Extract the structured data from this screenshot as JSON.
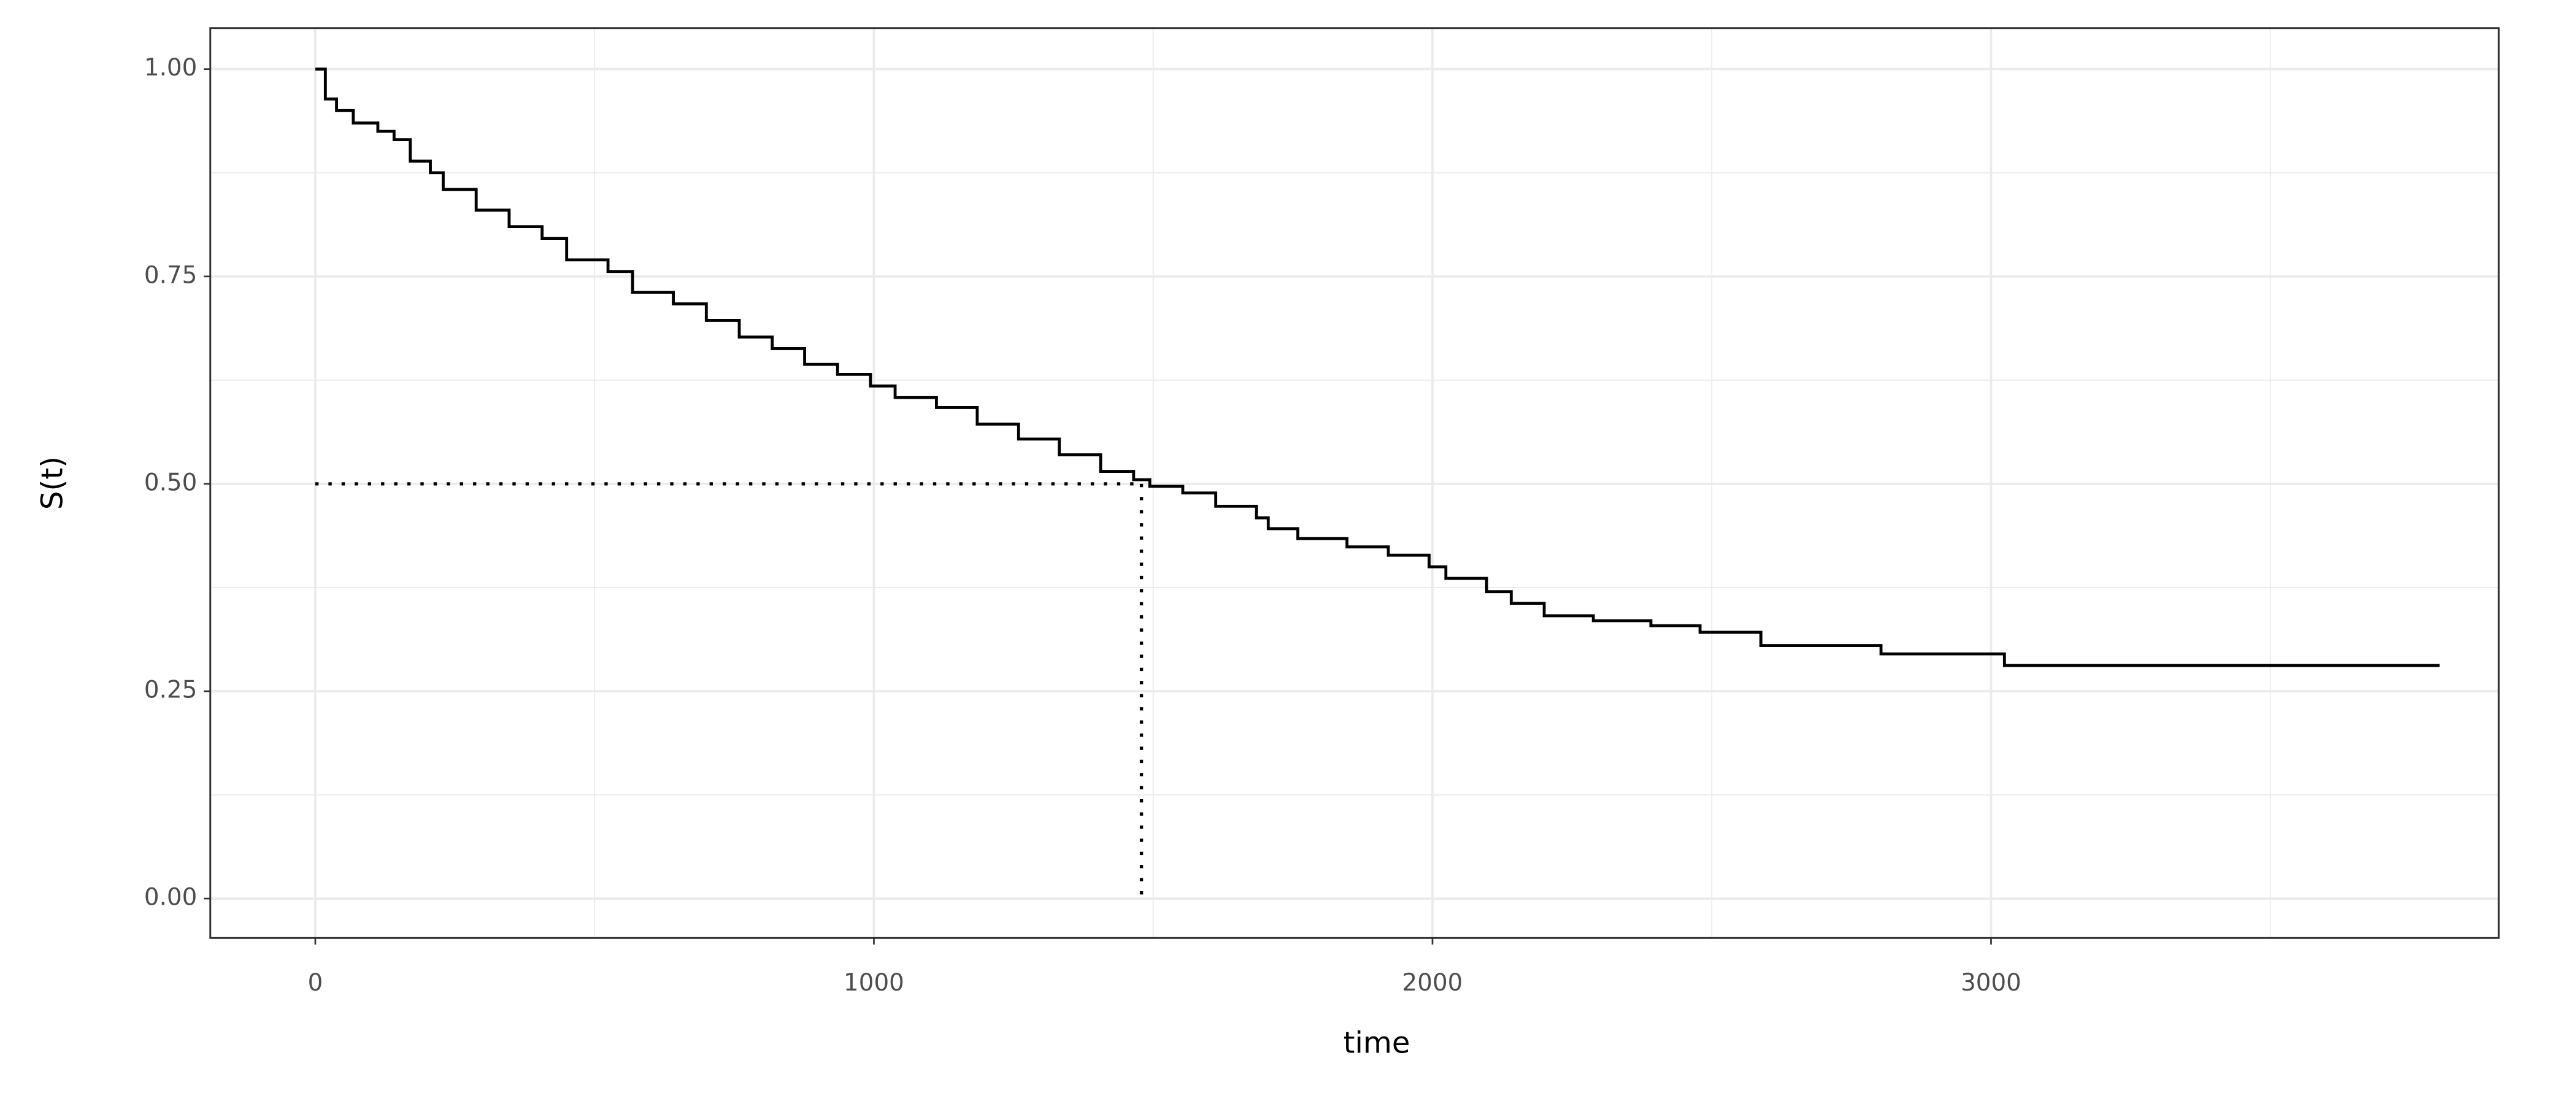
{
  "chart_data": {
    "type": "line",
    "step": "post",
    "color": "#000000",
    "x_label": "time",
    "y_label": "S(t)",
    "x": [
      0,
      18,
      38,
      68,
      112,
      141,
      170,
      206,
      229,
      288,
      347,
      406,
      450,
      524,
      568,
      641,
      700,
      759,
      818,
      876,
      935,
      994,
      1038,
      1112,
      1185,
      1259,
      1332,
      1406,
      1465,
      1494,
      1553,
      1612,
      1685,
      1706,
      1759,
      1847,
      1921,
      1994,
      2024,
      2097,
      2141,
      2200,
      2288,
      2391,
      2479,
      2588,
      2803,
      3024,
      3803
    ],
    "series": [
      {
        "color": "#000000",
        "values": [
          1.0,
          0.964,
          0.95,
          0.935,
          0.925,
          0.915,
          0.889,
          0.875,
          0.855,
          0.83,
          0.81,
          0.796,
          0.77,
          0.756,
          0.731,
          0.717,
          0.697,
          0.677,
          0.663,
          0.644,
          0.632,
          0.618,
          0.604,
          0.592,
          0.572,
          0.554,
          0.535,
          0.515,
          0.505,
          0.497,
          0.489,
          0.473,
          0.459,
          0.446,
          0.434,
          0.424,
          0.414,
          0.4,
          0.386,
          0.37,
          0.356,
          0.341,
          0.335,
          0.329,
          0.321,
          0.305,
          0.295,
          0.281,
          0.281
        ]
      }
    ],
    "median": {
      "x": 1479,
      "y": 0.5
    },
    "xlim": [
      -188,
      3909
    ],
    "ylim": [
      -0.0475,
      1.0495
    ],
    "xticks": [
      0,
      1000,
      2000,
      3000
    ],
    "yticks": [
      {
        "value": 0,
        "label": "0.00"
      },
      0.25,
      {
        "value": 0.5,
        "label": "0.50"
      },
      0.75,
      {
        "value": 1,
        "label": "1.00"
      }
    ],
    "x_minor_grid": [
      500,
      1500,
      2500,
      3500
    ],
    "y_minor_grid": [
      0.125,
      0.375,
      0.625,
      0.875
    ],
    "grid": true
  }
}
